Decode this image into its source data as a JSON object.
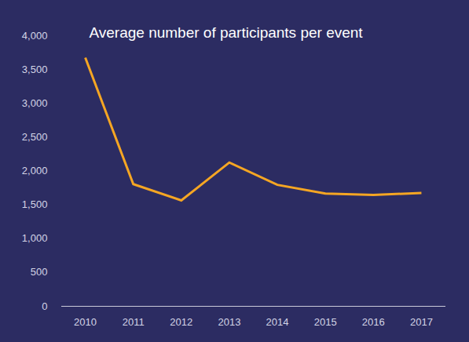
{
  "chart_data": {
    "type": "line",
    "title": "Average number of participants per event",
    "categories": [
      "2010",
      "2011",
      "2012",
      "2013",
      "2014",
      "2015",
      "2016",
      "2017"
    ],
    "values": [
      3670,
      1800,
      1560,
      2120,
      1790,
      1660,
      1640,
      1670
    ],
    "color": "#f5a623",
    "ylim": [
      0,
      4000
    ],
    "yticks": [
      0,
      500,
      {
        "value": 1000,
        "label": "1,000"
      },
      {
        "value": 1500,
        "label": "1,500"
      },
      {
        "value": 2000,
        "label": "2,000"
      },
      {
        "value": 2500,
        "label": "2,500"
      },
      {
        "value": 3000,
        "label": "3,000"
      },
      {
        "value": 3500,
        "label": "3,500"
      },
      {
        "value": 4000,
        "label": "4,000"
      }
    ],
    "grid": false
  }
}
